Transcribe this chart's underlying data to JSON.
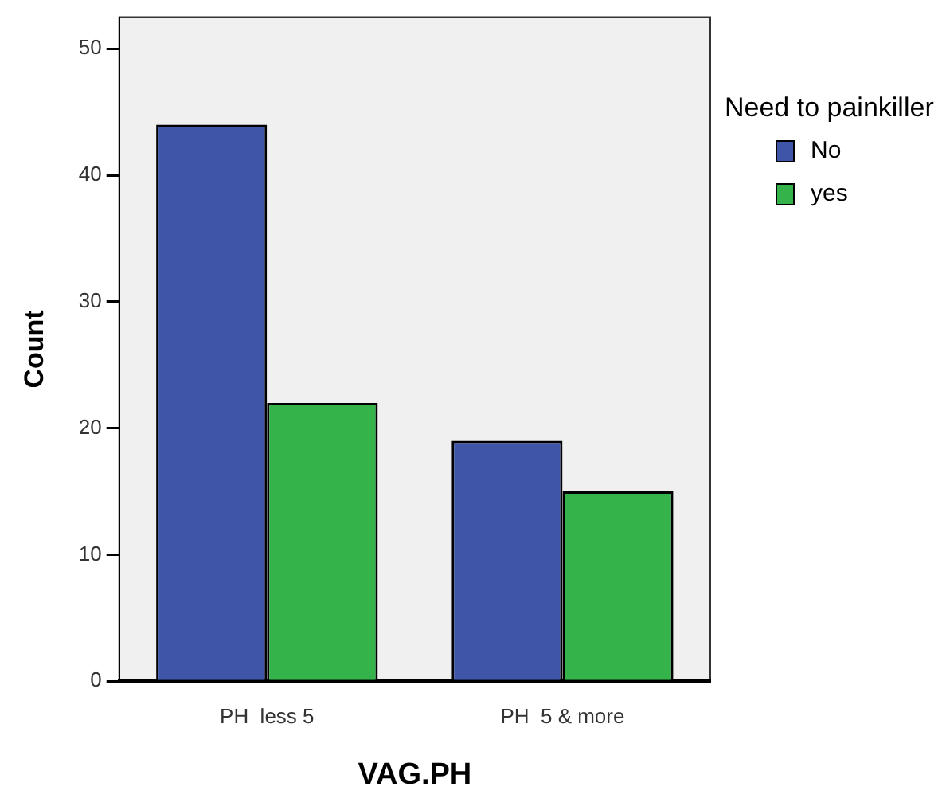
{
  "chart_data": {
    "type": "bar",
    "xlabel": "VAG.PH",
    "ylabel": "Count",
    "legend_title": "Need to painkiller",
    "categories": [
      "PH  less 5",
      "PH  5 & more"
    ],
    "series": [
      {
        "name": "No",
        "color": "#3f56a8",
        "values": [
          44,
          19
        ]
      },
      {
        "name": "yes",
        "color": "#33b34a",
        "values": [
          22,
          15
        ]
      }
    ],
    "ylim": [
      0,
      52.5
    ],
    "yticks": [
      0,
      10,
      20,
      30,
      40,
      50
    ],
    "grid": false,
    "legend": "right"
  }
}
